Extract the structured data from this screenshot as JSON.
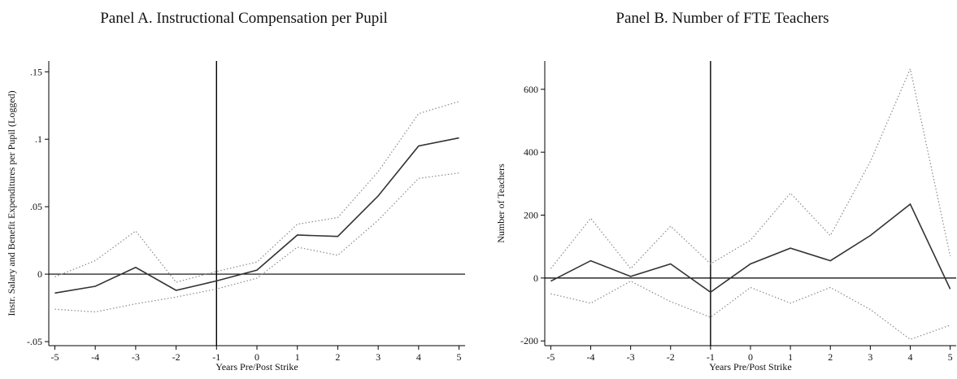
{
  "chart_data": [
    {
      "type": "line",
      "title": "Panel A. Instructional Compensation per Pupil",
      "xlabel": "Years Pre/Post Strike",
      "ylabel": "Instr. Salary and Benefit Expenditures per Pupil (Logged)",
      "x": [
        -5,
        -4,
        -3,
        -2,
        -1,
        0,
        1,
        2,
        3,
        4,
        5
      ],
      "xticks": [
        -5,
        -4,
        -3,
        -2,
        -1,
        0,
        1,
        2,
        3,
        4,
        5
      ],
      "yticks": [
        -0.05,
        0,
        0.05,
        0.1,
        0.15
      ],
      "ytick_labels": [
        "-.05",
        "0",
        ".05",
        ".1",
        ".15"
      ],
      "xlim": [
        -5.15,
        5.15
      ],
      "ylim": [
        -0.053,
        0.158
      ],
      "vline_x": -1,
      "hline_y": 0,
      "grid": false,
      "series": [
        {
          "role": "estimate",
          "style": "solid",
          "values": [
            -0.014,
            -0.009,
            0.005,
            -0.012,
            -0.005,
            0.003,
            0.029,
            0.028,
            0.058,
            0.095,
            0.101
          ]
        },
        {
          "role": "upper",
          "style": "dotted",
          "values": [
            -0.002,
            0.01,
            0.032,
            -0.006,
            0.002,
            0.009,
            0.037,
            0.042,
            0.076,
            0.119,
            0.128
          ]
        },
        {
          "role": "lower",
          "style": "dotted",
          "values": [
            -0.026,
            -0.028,
            -0.022,
            -0.017,
            -0.011,
            -0.003,
            0.02,
            0.014,
            0.04,
            0.071,
            0.075
          ]
        }
      ]
    },
    {
      "type": "line",
      "title": "Panel B. Number of FTE Teachers",
      "xlabel": "Years Pre/Post Strike",
      "ylabel": "Number of Teachers",
      "x": [
        -5,
        -4,
        -3,
        -2,
        -1,
        0,
        1,
        2,
        3,
        4,
        5
      ],
      "xticks": [
        -5,
        -4,
        -3,
        -2,
        -1,
        0,
        1,
        2,
        3,
        4,
        5
      ],
      "yticks": [
        -200,
        0,
        200,
        400,
        600
      ],
      "ytick_labels": [
        "-200",
        "0",
        "200",
        "400",
        "600"
      ],
      "xlim": [
        -5.15,
        5.15
      ],
      "ylim": [
        -215,
        690
      ],
      "vline_x": -1,
      "hline_y": 0,
      "grid": false,
      "series": [
        {
          "role": "estimate",
          "style": "solid",
          "values": [
            -10,
            55,
            5,
            45,
            -45,
            45,
            95,
            55,
            135,
            235,
            -35
          ]
        },
        {
          "role": "upper",
          "style": "dotted",
          "values": [
            30,
            190,
            30,
            165,
            45,
            120,
            270,
            135,
            370,
            665,
            70
          ]
        },
        {
          "role": "lower",
          "style": "dotted",
          "values": [
            -50,
            -80,
            -10,
            -75,
            -125,
            -30,
            -80,
            -30,
            -100,
            -195,
            -150
          ]
        }
      ]
    }
  ]
}
